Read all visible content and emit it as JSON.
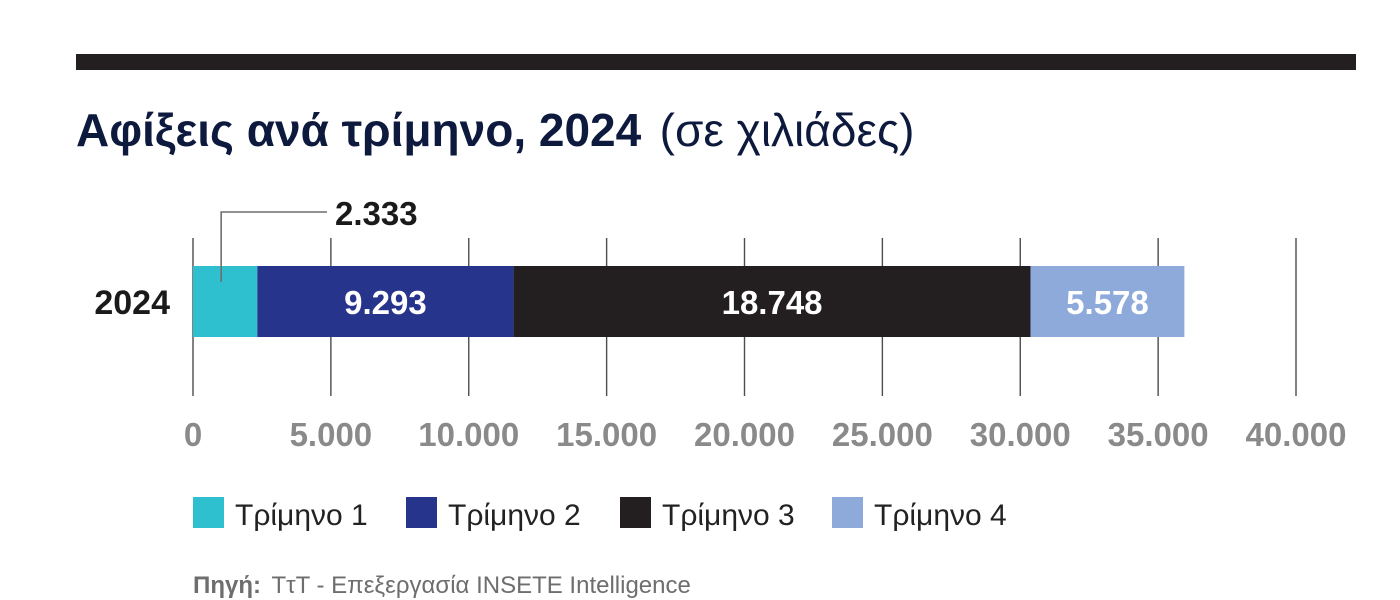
{
  "title": {
    "main": "Αφίξεις ανά τρίμηνο, 2024",
    "unit": "(σε χιλιάδες)"
  },
  "chart_data": {
    "type": "bar",
    "orientation": "horizontal",
    "stacked": true,
    "categories": [
      "2024"
    ],
    "series": [
      {
        "name": "Τρίμηνο 1",
        "values": [
          2333
        ],
        "label": "2.333",
        "color": "#2ec0cf"
      },
      {
        "name": "Τρίμηνο 2",
        "values": [
          9293
        ],
        "label": "9.293",
        "color": "#27348b"
      },
      {
        "name": "Τρίμηνο 3",
        "values": [
          18748
        ],
        "label": "18.748",
        "color": "#231f20"
      },
      {
        "name": "Τρίμηνο 4",
        "values": [
          5578
        ],
        "label": "5.578",
        "color": "#8eaadb"
      }
    ],
    "xlim": [
      0,
      40000
    ],
    "xticks": [
      0,
      5000,
      10000,
      15000,
      20000,
      25000,
      30000,
      35000,
      40000
    ],
    "xtick_labels": [
      "0",
      "5.000",
      "10.000",
      "15.000",
      "20.000",
      "25.000",
      "30.000",
      "35.000",
      "40.000"
    ],
    "grid": true,
    "legend_position": "bottom-left",
    "xlabel": "",
    "ylabel": ""
  },
  "source": {
    "label": "Πηγή:",
    "text": "ΤτΤ - Επεξεργασία INSETE Intelligence"
  },
  "colors": {
    "rule": "#231f20",
    "grid": "#4d4d4d",
    "title": "#0d1a3e"
  }
}
